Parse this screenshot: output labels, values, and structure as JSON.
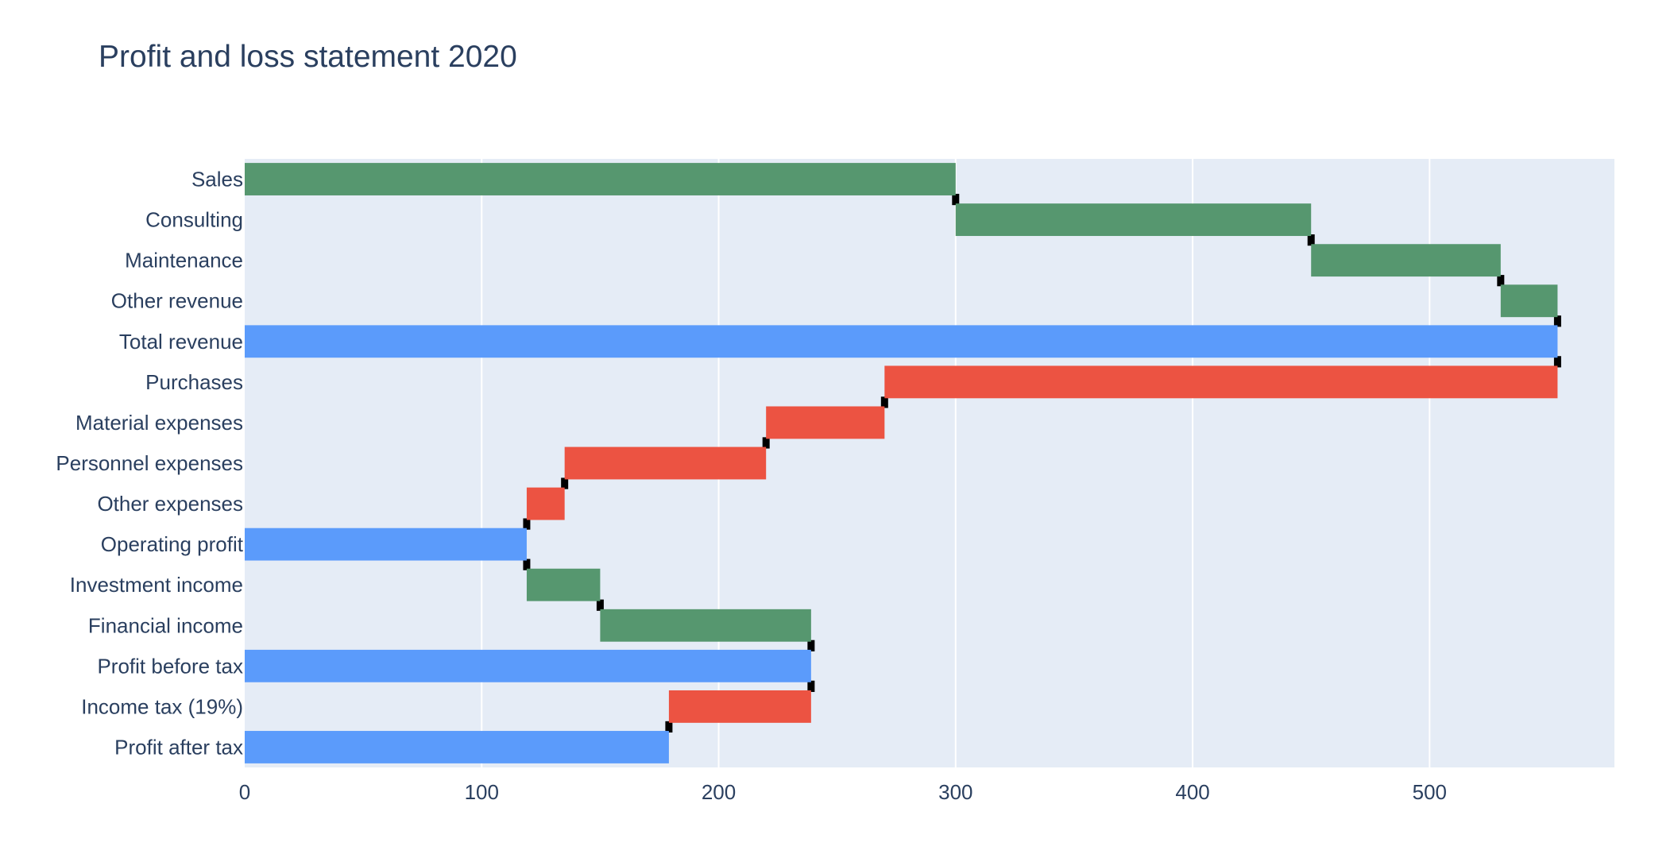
{
  "chart_data": {
    "type": "waterfall",
    "orientation": "horizontal",
    "title": "Profit and loss statement 2020",
    "xlabel": "",
    "ylabel": "",
    "xlim": [
      0,
      578
    ],
    "x_ticks": [
      0,
      100,
      200,
      300,
      400,
      500
    ],
    "grid": true,
    "legend": "none",
    "categories": [
      "Sales",
      "Consulting",
      "Maintenance",
      "Other revenue",
      "Total revenue",
      "Purchases",
      "Material expenses",
      "Personnel expenses",
      "Other expenses",
      "Operating profit",
      "Investment income",
      "Financial income",
      "Profit before tax",
      "Income tax (19%)",
      "Profit after tax"
    ],
    "measure": [
      "relative",
      "relative",
      "relative",
      "relative",
      "total",
      "relative",
      "relative",
      "relative",
      "relative",
      "total",
      "relative",
      "relative",
      "total",
      "relative",
      "total"
    ],
    "values": [
      300,
      150,
      80,
      24,
      554,
      -284,
      -50,
      -85,
      -16,
      119,
      31,
      89,
      239,
      -60,
      179
    ],
    "colors": {
      "increasing": "#56976f",
      "decreasing": "#ec5342",
      "totals": "#5b9bfb",
      "connector": "#000000",
      "plot_bg": "#e5ecf6",
      "grid": "#ffffff",
      "text": "#2a3f5f"
    }
  }
}
